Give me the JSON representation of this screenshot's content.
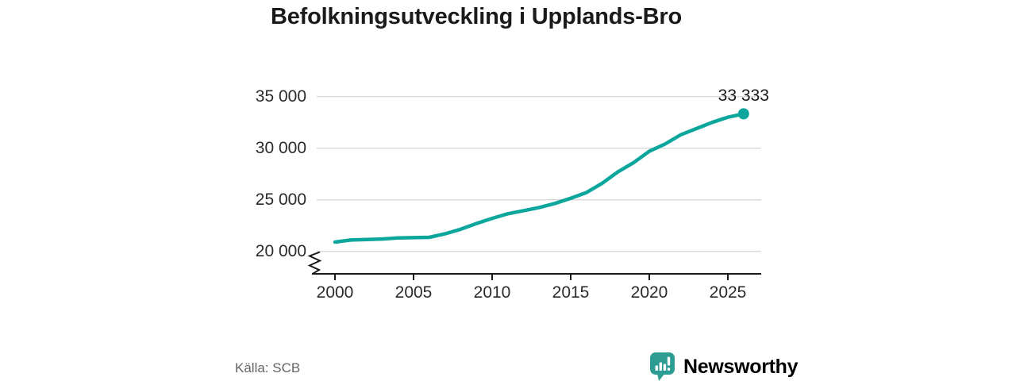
{
  "title": "Befolkningsutveckling i Upplands-Bro",
  "source": "Källa: SCB",
  "branding": {
    "name": "Newsworthy"
  },
  "colors": {
    "line": "#0CA69C",
    "brand": "#2D9C92",
    "grid": "#D9D9D9",
    "axis": "#1A1A1A",
    "text": "#1A1A1A",
    "muted_text": "#646464"
  },
  "chart_data": {
    "type": "line",
    "title": "Befolkningsutveckling i Upplands-Bro",
    "x": [
      2000,
      2001,
      2002,
      2003,
      2004,
      2005,
      2006,
      2007,
      2008,
      2009,
      2010,
      2011,
      2012,
      2013,
      2014,
      2015,
      2016,
      2017,
      2018,
      2019,
      2020,
      2021,
      2022,
      2023,
      2024,
      2025,
      2026
    ],
    "values": [
      20900,
      21100,
      21150,
      21200,
      21300,
      21330,
      21360,
      21700,
      22150,
      22700,
      23200,
      23650,
      23950,
      24250,
      24650,
      25150,
      25700,
      26600,
      27700,
      28600,
      29700,
      30400,
      31300,
      31900,
      32500,
      33000,
      33333
    ],
    "x_ticks": [
      {
        "value": 2000,
        "label": "2000"
      },
      {
        "value": 2005,
        "label": "2005"
      },
      {
        "value": 2010,
        "label": "2010"
      },
      {
        "value": 2015,
        "label": "2015"
      },
      {
        "value": 2020,
        "label": "2020"
      },
      {
        "value": 2025,
        "label": "2025"
      }
    ],
    "y_ticks": [
      {
        "value": 35000,
        "label": "35 000"
      },
      {
        "value": 30000,
        "label": "30 000"
      },
      {
        "value": 25000,
        "label": "25 000"
      },
      {
        "value": 20000,
        "label": "20 000"
      }
    ],
    "ylim": [
      20000,
      35000
    ],
    "xlim": [
      2000,
      2027
    ],
    "grid": true,
    "legend": false,
    "axis_break_at_bottom": true,
    "end_point": {
      "x": 2026,
      "value": 33333,
      "label": "33 333"
    }
  }
}
